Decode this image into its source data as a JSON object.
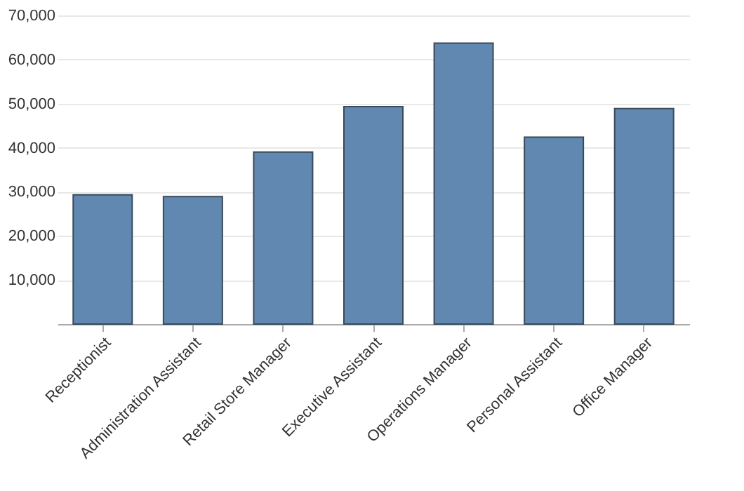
{
  "chart_data": {
    "type": "bar",
    "categories": [
      "Receptionist",
      "Administration Assistant",
      "Retail Store Manager",
      "Executive Assistant",
      "Operations Manager",
      "Personal Assistant",
      "Office Manager"
    ],
    "values": [
      29300,
      28900,
      39000,
      49300,
      63700,
      42400,
      48900
    ],
    "color": "#6088b0",
    "ylim": [
      0,
      70000
    ],
    "yticks": [
      {
        "value": 10000,
        "label": "10,000"
      },
      {
        "value": 20000,
        "label": "20,000"
      },
      {
        "value": 30000,
        "label": "30,000"
      },
      {
        "value": 40000,
        "label": "40,000"
      },
      {
        "value": 50000,
        "label": "50,000"
      },
      {
        "value": 60000,
        "label": "60,000"
      },
      {
        "value": 70000,
        "label": "70,000"
      }
    ],
    "grid": "y"
  }
}
